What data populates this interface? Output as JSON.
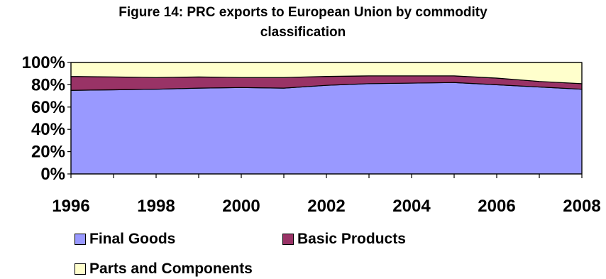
{
  "chart_data": {
    "type": "area",
    "stacked": true,
    "title_line1": "Figure 14: PRC exports to European Union by commodity",
    "title_line2": "classification",
    "x": [
      1996,
      1997,
      1998,
      1999,
      2000,
      2001,
      2002,
      2003,
      2004,
      2005,
      2006,
      2007,
      2008
    ],
    "x_tick_labels": [
      "1996",
      "1998",
      "2000",
      "2002",
      "2004",
      "2006",
      "2008"
    ],
    "y_tick_labels": [
      "100%",
      "80%",
      "60%",
      "40%",
      "20%",
      "0%"
    ],
    "ylim": [
      0,
      100
    ],
    "series": [
      {
        "name": "Final Goods",
        "color": "#9999ff",
        "values": [
          75,
          75.5,
          76,
          77,
          77.5,
          77,
          79.5,
          81,
          81.5,
          82,
          80,
          78,
          76
        ]
      },
      {
        "name": "Basic Products",
        "color": "#993366",
        "values": [
          12.5,
          11.5,
          10.5,
          10,
          9,
          9.5,
          8,
          7,
          6.5,
          6,
          6,
          5,
          5
        ]
      },
      {
        "name": "Parts and Components",
        "color": "#ffffcc",
        "values": [
          12.5,
          13,
          13.5,
          13,
          13.5,
          13.5,
          12.5,
          12,
          12,
          12,
          14,
          17,
          19
        ]
      }
    ],
    "grid": false,
    "legend_position": "bottom"
  }
}
